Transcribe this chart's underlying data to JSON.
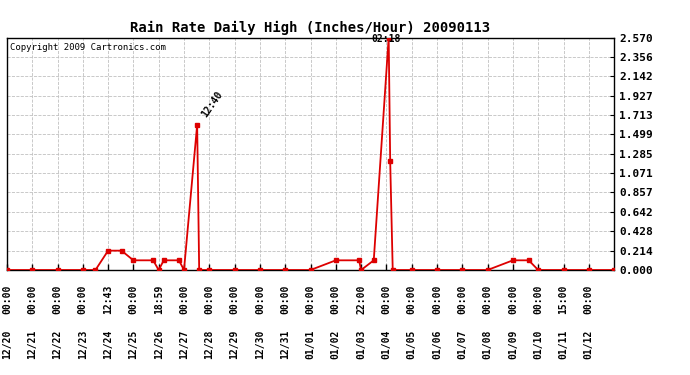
{
  "title": "Rain Rate Daily High (Inches/Hour) 20090113",
  "copyright": "Copyright 2009 Cartronics.com",
  "bg_color": "#ffffff",
  "line_color": "#dd0000",
  "grid_color": "#c0c0c0",
  "ytick_vals": [
    0.0,
    0.214,
    0.428,
    0.642,
    0.857,
    1.071,
    1.285,
    1.499,
    1.713,
    1.927,
    2.142,
    2.356,
    2.57
  ],
  "ylim": [
    0.0,
    2.57
  ],
  "xlim": [
    0.0,
    24.0
  ],
  "date_labels": [
    "12/20",
    "12/21",
    "12/22",
    "12/23",
    "12/24",
    "12/25",
    "12/26",
    "12/27",
    "12/28",
    "12/29",
    "12/30",
    "12/31",
    "01/01",
    "01/02",
    "01/03",
    "01/04",
    "01/05",
    "01/06",
    "01/07",
    "01/08",
    "01/09",
    "01/10",
    "01/11",
    "01/12"
  ],
  "time_labels": [
    "00:00",
    "00:00",
    "00:00",
    "00:00",
    "12:43",
    "00:00",
    "18:59",
    "00:00",
    "00:00",
    "00:00",
    "00:00",
    "00:00",
    "00:00",
    "00:00",
    "22:00",
    "00:00",
    "00:00",
    "00:00",
    "00:00",
    "00:00",
    "00:00",
    "00:00",
    "15:00",
    "00:00"
  ],
  "data_x": [
    0,
    1,
    2,
    3,
    3.5,
    4.0,
    4.53,
    5.0,
    5.78,
    6.0,
    6.2,
    6.8,
    7.0,
    7.52,
    7.6,
    8.0,
    9,
    10,
    11,
    12,
    13,
    13.92,
    14.0,
    14.5,
    15.09,
    15.15,
    15.25,
    16,
    17,
    18,
    19,
    20.0,
    20.625,
    21,
    22,
    23,
    24
  ],
  "data_y": [
    0.0,
    0.0,
    0.0,
    0.0,
    0.0,
    0.214,
    0.214,
    0.107,
    0.107,
    0.0,
    0.107,
    0.107,
    0.0,
    1.605,
    0.0,
    0.0,
    0.0,
    0.0,
    0.0,
    0.0,
    0.107,
    0.107,
    0.0,
    0.107,
    2.57,
    1.2,
    0.0,
    0.0,
    0.0,
    0.0,
    0.0,
    0.107,
    0.107,
    0.0,
    0.0,
    0.0,
    0.0
  ],
  "peak1_x": 7.52,
  "peak1_y": 1.605,
  "peak1_label": "12:40",
  "peak2_x": 15.09,
  "peak2_y": 2.57,
  "peak2_label": "02:18",
  "marker_style": "s",
  "marker_size": 3.5,
  "linewidth": 1.3,
  "title_fontsize": 10,
  "tick_fontsize": 7,
  "ytick_fontsize": 8
}
